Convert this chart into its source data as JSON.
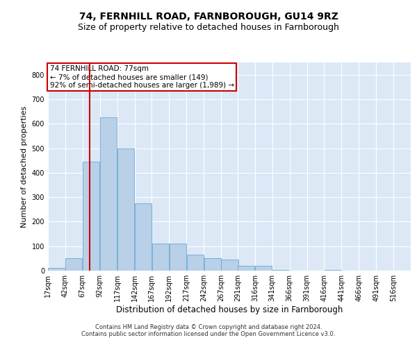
{
  "title1": "74, FERNHILL ROAD, FARNBOROUGH, GU14 9RZ",
  "title2": "Size of property relative to detached houses in Farnborough",
  "xlabel": "Distribution of detached houses by size in Farnborough",
  "ylabel": "Number of detached properties",
  "footer1": "Contains HM Land Registry data © Crown copyright and database right 2024.",
  "footer2": "Contains public sector information licensed under the Open Government Licence v3.0.",
  "annotation_line1": "74 FERNHILL ROAD: 77sqm",
  "annotation_line2": "← 7% of detached houses are smaller (149)",
  "annotation_line3": "92% of semi-detached houses are larger (1,989) →",
  "bar_color": "#b8d0e8",
  "bar_edge_color": "#6aaad4",
  "vline_color": "#cc0000",
  "vline_x": 77,
  "categories": [
    "17sqm",
    "42sqm",
    "67sqm",
    "92sqm",
    "117sqm",
    "142sqm",
    "167sqm",
    "192sqm",
    "217sqm",
    "242sqm",
    "267sqm",
    "291sqm",
    "316sqm",
    "341sqm",
    "366sqm",
    "391sqm",
    "416sqm",
    "441sqm",
    "466sqm",
    "491sqm",
    "516sqm"
  ],
  "bin_starts": [
    17,
    42,
    67,
    92,
    117,
    142,
    167,
    192,
    217,
    242,
    267,
    291,
    316,
    341,
    366,
    391,
    416,
    441,
    466,
    491,
    516
  ],
  "bin_width": 25,
  "values": [
    10,
    50,
    445,
    625,
    500,
    275,
    110,
    110,
    65,
    50,
    45,
    20,
    20,
    3,
    0,
    0,
    3,
    0,
    0,
    0,
    0
  ],
  "ylim": [
    0,
    850
  ],
  "yticks": [
    0,
    100,
    200,
    300,
    400,
    500,
    600,
    700,
    800
  ],
  "fig_bg_color": "#ffffff",
  "plot_bg_color": "#dce8f5",
  "grid_color": "#ffffff",
  "title1_fontsize": 10,
  "title2_fontsize": 9,
  "xlabel_fontsize": 8.5,
  "ylabel_fontsize": 8,
  "tick_fontsize": 7,
  "footer_fontsize": 6,
  "annotation_fontsize": 7.5,
  "annotation_box_edge": "#cc0000"
}
